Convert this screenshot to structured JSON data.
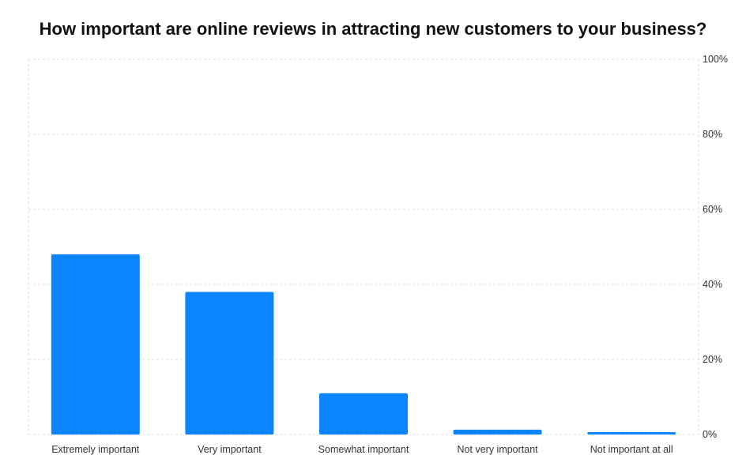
{
  "colors": {
    "bar": "#0a84ff",
    "grid": "#dddddd",
    "text": "#333333",
    "title": "#111111"
  },
  "chart_data": {
    "type": "bar",
    "title": "How important are online reviews in attracting new customers to your business?",
    "categories": [
      "Extremely important",
      "Very important",
      "Somewhat important",
      "Not very important",
      "Not important at all"
    ],
    "values": [
      48,
      38,
      11,
      1.3,
      0.6
    ],
    "yticks": [
      "0%",
      "20%",
      "40%",
      "60%",
      "80%",
      "100%"
    ],
    "ylim": [
      0,
      100
    ],
    "y_axis_position": "right",
    "grid": true,
    "xlabel": "",
    "ylabel": ""
  }
}
